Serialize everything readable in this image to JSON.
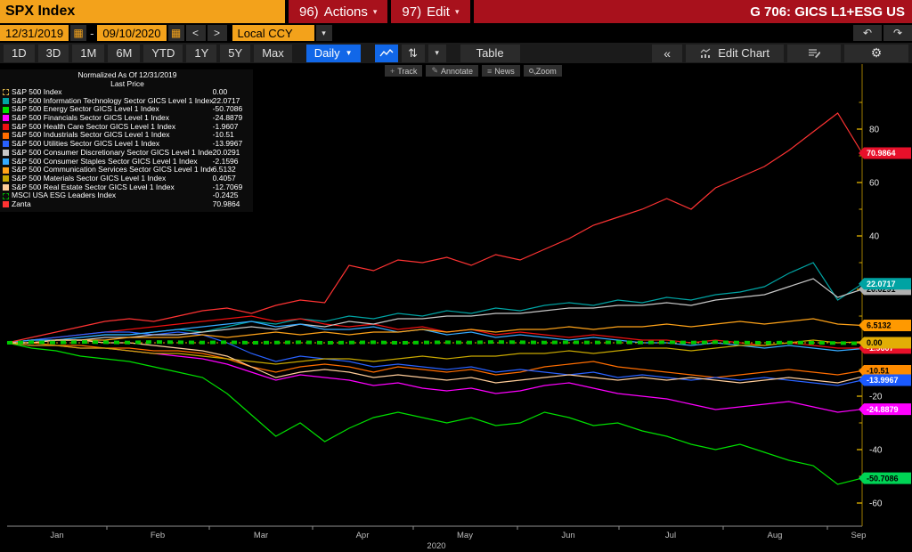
{
  "titlebar": {
    "security": "SPX Index",
    "actions_num": "96)",
    "actions_label": "Actions",
    "edit_num": "97)",
    "edit_label": "Edit",
    "title": "G 706: GICS L1+ESG US"
  },
  "datebar": {
    "start_date": "12/31/2019",
    "separator": "-",
    "end_date": "09/10/2020",
    "currency": "Local CCY",
    "prev": "<",
    "next": ">"
  },
  "icons": {
    "calendar": "▦",
    "dropdown": "▾",
    "daily_arrow": "▼",
    "undo": "↶",
    "redo": "↷",
    "collapse": "«",
    "gear": "⚙",
    "annotate_glyph": "✎",
    "news_glyph": "≡",
    "track_glyph": "+",
    "bars_glyph": "⇅"
  },
  "toolbar": {
    "ranges": [
      "1D",
      "3D",
      "1M",
      "6M",
      "YTD",
      "1Y",
      "5Y",
      "Max"
    ],
    "period": "Daily",
    "table_label": "Table",
    "edit_chart_label": "Edit Chart"
  },
  "minibar": {
    "track": "Track",
    "annotate": "Annotate",
    "news": "News",
    "zoom": "Zoom"
  },
  "legend": {
    "header1": "Normalized As Of 12/31/2019",
    "header2": "Last Price",
    "items": [
      {
        "name": "S&P 500 Index",
        "value": "0.00",
        "color": "#d8b24a",
        "dashed": true
      },
      {
        "name": "S&P 500 Information Technology Sector GICS Level 1 Index",
        "value": "22.0717",
        "color": "#00a3a3",
        "dashed": false
      },
      {
        "name": "S&P 500 Energy Sector GICS Level 1 Index",
        "value": "-50.7086",
        "color": "#00e000",
        "dashed": false
      },
      {
        "name": "S&P 500 Financials Sector GICS Level 1 Index",
        "value": "-24.8879",
        "color": "#ff00ff",
        "dashed": false
      },
      {
        "name": "S&P 500 Health Care Sector GICS Level 1 Index",
        "value": "-1.9607",
        "color": "#ee1111",
        "dashed": false
      },
      {
        "name": "S&P 500 Industrials Sector GICS Level 1 Index",
        "value": "-10.51",
        "color": "#ff6d00",
        "dashed": false
      },
      {
        "name": "S&P 500 Utilities Sector GICS Level 1 Index",
        "value": "-13.9967",
        "color": "#2962ff",
        "dashed": false
      },
      {
        "name": "S&P 500 Consumer Discretionary Sector GICS Level 1 Index",
        "value": "20.0291",
        "color": "#c8c8c8",
        "dashed": false
      },
      {
        "name": "S&P 500 Consumer Staples Sector GICS Level 1 Index",
        "value": "-2.1596",
        "color": "#35aaff",
        "dashed": false
      },
      {
        "name": "S&P 500 Communication Services Sector GICS Level 1 Index",
        "value": "6.5132",
        "color": "#ffa319",
        "dashed": false
      },
      {
        "name": "S&P 500 Materials Sector GICS Level 1 Index",
        "value": "0.4057",
        "color": "#c8a800",
        "dashed": false
      },
      {
        "name": "S&P 500 Real Estate Sector GICS Level 1 Index",
        "value": "-12.7069",
        "color": "#ffcc99",
        "dashed": false
      },
      {
        "name": "MSCI USA ESG Leaders Index",
        "value": "-0.2425",
        "color": "#00b400",
        "dashed": true
      },
      {
        "name": "Zanta",
        "value": "70.9864",
        "color": "#ff3333",
        "dashed": false
      }
    ]
  },
  "chart_data": {
    "type": "line",
    "note": "Relative performance normalized to 0 at 12/31/2019, daily through 09/10/2020",
    "x_range": [
      "12/31/2019",
      "09/10/2020"
    ],
    "ylim": [
      -68,
      99
    ],
    "grid": false,
    "legend_position": "top-left",
    "series": [
      {
        "name": "S&P 500 Information Technology",
        "color": "#00a3a3",
        "last": 22.0717,
        "values": [
          0,
          1,
          1,
          2,
          3,
          3,
          4,
          5,
          4,
          6,
          8,
          7,
          9,
          8,
          10,
          9,
          11,
          10,
          12,
          11,
          13,
          12,
          14,
          15,
          14,
          16,
          15,
          17,
          16,
          18,
          19,
          21,
          26,
          30,
          16,
          22
        ]
      },
      {
        "name": "S&P 500 Energy",
        "color": "#00e000",
        "last": -50.7086,
        "values": [
          0,
          -2,
          -3,
          -5,
          -6,
          -7,
          -9,
          -11,
          -13,
          -19,
          -27,
          -35,
          -30,
          -37,
          -32,
          -28,
          -26,
          -28,
          -30,
          -28,
          -31,
          -30,
          -26,
          -28,
          -31,
          -30,
          -33,
          -35,
          -38,
          -40,
          -38,
          -41,
          -44,
          -46,
          -53,
          -50.7
        ]
      },
      {
        "name": "S&P 500 Financials",
        "color": "#ff00ff",
        "last": -24.8879,
        "values": [
          0,
          -1,
          -1,
          -2,
          -2,
          -3,
          -4,
          -5,
          -6,
          -8,
          -11,
          -14,
          -12,
          -13,
          -14,
          -16,
          -15,
          -17,
          -18,
          -17,
          -19,
          -18,
          -16,
          -15,
          -17,
          -19,
          -20,
          -21,
          -23,
          -25,
          -24,
          -23,
          -22,
          -24,
          -26,
          -24.9
        ]
      },
      {
        "name": "S&P 500 Health Care",
        "color": "#ee1111",
        "last": -1.9607,
        "values": [
          0,
          1,
          2,
          3,
          4,
          5,
          6,
          7,
          8,
          9,
          10,
          8,
          9,
          7,
          6,
          7,
          5,
          6,
          4,
          5,
          3,
          4,
          3,
          2,
          3,
          2,
          1,
          1,
          0,
          1,
          0,
          -1,
          0,
          -1,
          -2,
          -2
        ]
      },
      {
        "name": "S&P 500 Industrials",
        "color": "#ff6d00",
        "last": -10.51,
        "values": [
          0,
          0,
          -1,
          -1,
          -2,
          -2,
          -3,
          -3,
          -4,
          -6,
          -9,
          -11,
          -9,
          -8,
          -9,
          -11,
          -9,
          -10,
          -11,
          -10,
          -12,
          -11,
          -9,
          -8,
          -7,
          -9,
          -10,
          -11,
          -12,
          -13,
          -12,
          -11,
          -10,
          -11,
          -12,
          -10.5
        ]
      },
      {
        "name": "S&P 500 Utilities",
        "color": "#2962ff",
        "last": -13.9967,
        "values": [
          0,
          1,
          2,
          3,
          4,
          4,
          3,
          4,
          3,
          0,
          -4,
          -7,
          -5,
          -6,
          -7,
          -9,
          -8,
          -9,
          -10,
          -9,
          -11,
          -10,
          -11,
          -12,
          -11,
          -13,
          -12,
          -13,
          -14,
          -13,
          -14,
          -13,
          -14,
          -15,
          -16,
          -14
        ]
      },
      {
        "name": "S&P 500 Consumer Discretionary",
        "color": "#c8c8c8",
        "last": 20.0291,
        "values": [
          0,
          0,
          1,
          1,
          2,
          2,
          3,
          3,
          4,
          5,
          6,
          5,
          7,
          6,
          8,
          7,
          9,
          9,
          10,
          10,
          11,
          11,
          12,
          13,
          13,
          14,
          14,
          15,
          14,
          16,
          17,
          18,
          21,
          24,
          17,
          20
        ]
      },
      {
        "name": "S&P 500 Consumer Staples",
        "color": "#35aaff",
        "last": -2.1596,
        "values": [
          0,
          1,
          1,
          2,
          3,
          3,
          4,
          5,
          6,
          7,
          8,
          6,
          7,
          5,
          5,
          6,
          4,
          5,
          3,
          4,
          2,
          3,
          2,
          1,
          2,
          1,
          0,
          0,
          -1,
          0,
          -1,
          -2,
          -1,
          -2,
          -3,
          -2.2
        ]
      },
      {
        "name": "S&P 500 Communication Services",
        "color": "#ffa319",
        "last": 6.5132,
        "values": [
          0,
          0,
          1,
          1,
          1,
          2,
          2,
          2,
          3,
          2,
          3,
          4,
          3,
          4,
          3,
          4,
          4,
          5,
          4,
          5,
          4,
          5,
          5,
          6,
          5,
          6,
          6,
          7,
          6,
          7,
          8,
          7,
          8,
          9,
          7,
          6.5
        ]
      },
      {
        "name": "S&P 500 Materials",
        "color": "#c8a800",
        "last": 0.4057,
        "values": [
          0,
          -1,
          -1,
          -2,
          -2,
          -3,
          -4,
          -4,
          -5,
          -6,
          -7,
          -8,
          -7,
          -6,
          -6,
          -7,
          -6,
          -5,
          -6,
          -5,
          -5,
          -4,
          -4,
          -3,
          -4,
          -3,
          -2,
          -2,
          -3,
          -2,
          -1,
          -1,
          0,
          1,
          0,
          0.4
        ]
      },
      {
        "name": "S&P 500 Real Estate",
        "color": "#ffcc99",
        "last": -12.7069,
        "values": [
          0,
          0,
          1,
          1,
          0,
          0,
          -1,
          -2,
          -3,
          -5,
          -9,
          -13,
          -11,
          -10,
          -11,
          -13,
          -12,
          -13,
          -14,
          -13,
          -15,
          -14,
          -13,
          -12,
          -13,
          -14,
          -13,
          -14,
          -13,
          -14,
          -15,
          -14,
          -13,
          -14,
          -15,
          -12.7
        ]
      },
      {
        "name": "Zanta",
        "color": "#ff3333",
        "last": 70.9864,
        "values": [
          0,
          2,
          4,
          6,
          8,
          9,
          8,
          10,
          12,
          13,
          11,
          14,
          16,
          15,
          29,
          27,
          31,
          30,
          32,
          29,
          33,
          31,
          35,
          39,
          44,
          47,
          50,
          54,
          50,
          58,
          62,
          66,
          72,
          79,
          86,
          71
        ]
      },
      {
        "name": "S&P 500 Index (baseline)",
        "color": "#e8a000",
        "last": 0.0,
        "dash": "2 3",
        "width": 1,
        "values": [
          0,
          0,
          0,
          0,
          0,
          0,
          0,
          0,
          0,
          0,
          0,
          0,
          0,
          0,
          0,
          0,
          0,
          0,
          0,
          0,
          0,
          0,
          0,
          0,
          0,
          0,
          0,
          0,
          0,
          0,
          0,
          0,
          0,
          0,
          0,
          0
        ]
      },
      {
        "name": "MSCI USA ESG Leaders",
        "color": "#00c800",
        "last": -0.2425,
        "dash": "6 6",
        "width": 4,
        "values": [
          0,
          0.2,
          0.1,
          0.3,
          0.2,
          0.1,
          0.3,
          0.2,
          0.1,
          0.2,
          0,
          0.1,
          0.2,
          0,
          0.1,
          0.2,
          0,
          0.1,
          0.2,
          0.1,
          0.3,
          0.2,
          0.1,
          0.2,
          0.1,
          0.2,
          0.1,
          0.2,
          0.1,
          0.2,
          0.1,
          0,
          0.1,
          0,
          -0.1,
          -0.24
        ]
      }
    ],
    "y_axis": {
      "major_ticks": [
        80,
        60,
        40,
        20,
        0,
        -20,
        -40,
        -60
      ],
      "minor_step": 10
    },
    "x_axis": {
      "month_labels": [
        "Jan",
        "Feb",
        "Mar",
        "Apr",
        "May",
        "Jun",
        "Jul",
        "Aug",
        "Sep"
      ],
      "year": "2020"
    },
    "badges": [
      {
        "label": "20.0291",
        "v": 20.03,
        "bg": "#b0b0b0",
        "fg": "#000"
      },
      {
        "label": "22.0717",
        "v": 22.07,
        "bg": "#00a3a3",
        "fg": "#fff"
      },
      {
        "label": "70.9864",
        "v": 70.99,
        "bg": "#e8102a",
        "fg": "#fff"
      },
      {
        "label": "6.5132",
        "v": 6.51,
        "bg": "#ff9900",
        "fg": "#000"
      },
      {
        "label": "-1.9607",
        "v": -1.96,
        "bg": "#e8102a",
        "fg": "#fff"
      },
      {
        "label": "0.00",
        "v": 0.0,
        "bg": "#e2ae06",
        "fg": "#000"
      },
      {
        "label": "-10.51",
        "v": -10.51,
        "bg": "#ff8c00",
        "fg": "#000"
      },
      {
        "label": "-13.9967",
        "v": -14.0,
        "bg": "#1a5aff",
        "fg": "#fff"
      },
      {
        "label": "-24.8879",
        "v": -24.89,
        "bg": "#ff00ff",
        "fg": "#fff"
      },
      {
        "label": "-50.7086",
        "v": -50.71,
        "bg": "#00d455",
        "fg": "#000"
      }
    ]
  }
}
